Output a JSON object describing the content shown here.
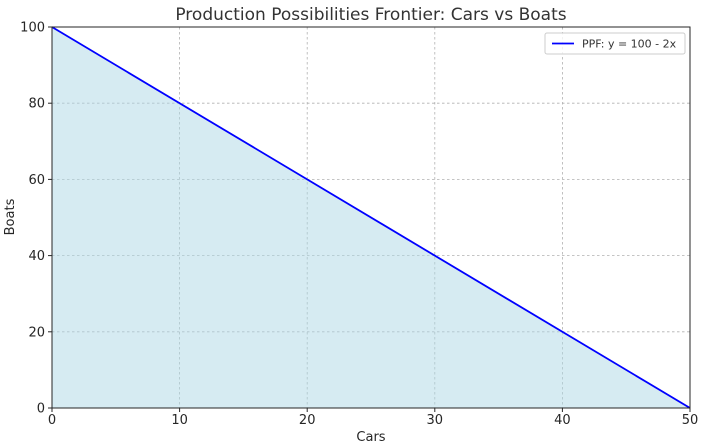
{
  "chart_data": {
    "type": "area",
    "title": "Production Possibilities Frontier: Cars vs Boats",
    "xlabel": "Cars",
    "ylabel": "Boats",
    "xlim": [
      0,
      50
    ],
    "ylim": [
      0,
      100
    ],
    "xticks": [
      0,
      10,
      20,
      30,
      40,
      50
    ],
    "yticks": [
      0,
      20,
      40,
      60,
      80,
      100
    ],
    "grid": true,
    "legend_position": "top-right",
    "series": [
      {
        "name": "PPF: y = 100 - 2x",
        "x": [
          0,
          50
        ],
        "y": [
          100,
          0
        ],
        "color": "#0000ff",
        "fill_color": "#add8e6",
        "fill_opacity": 0.5
      }
    ]
  }
}
